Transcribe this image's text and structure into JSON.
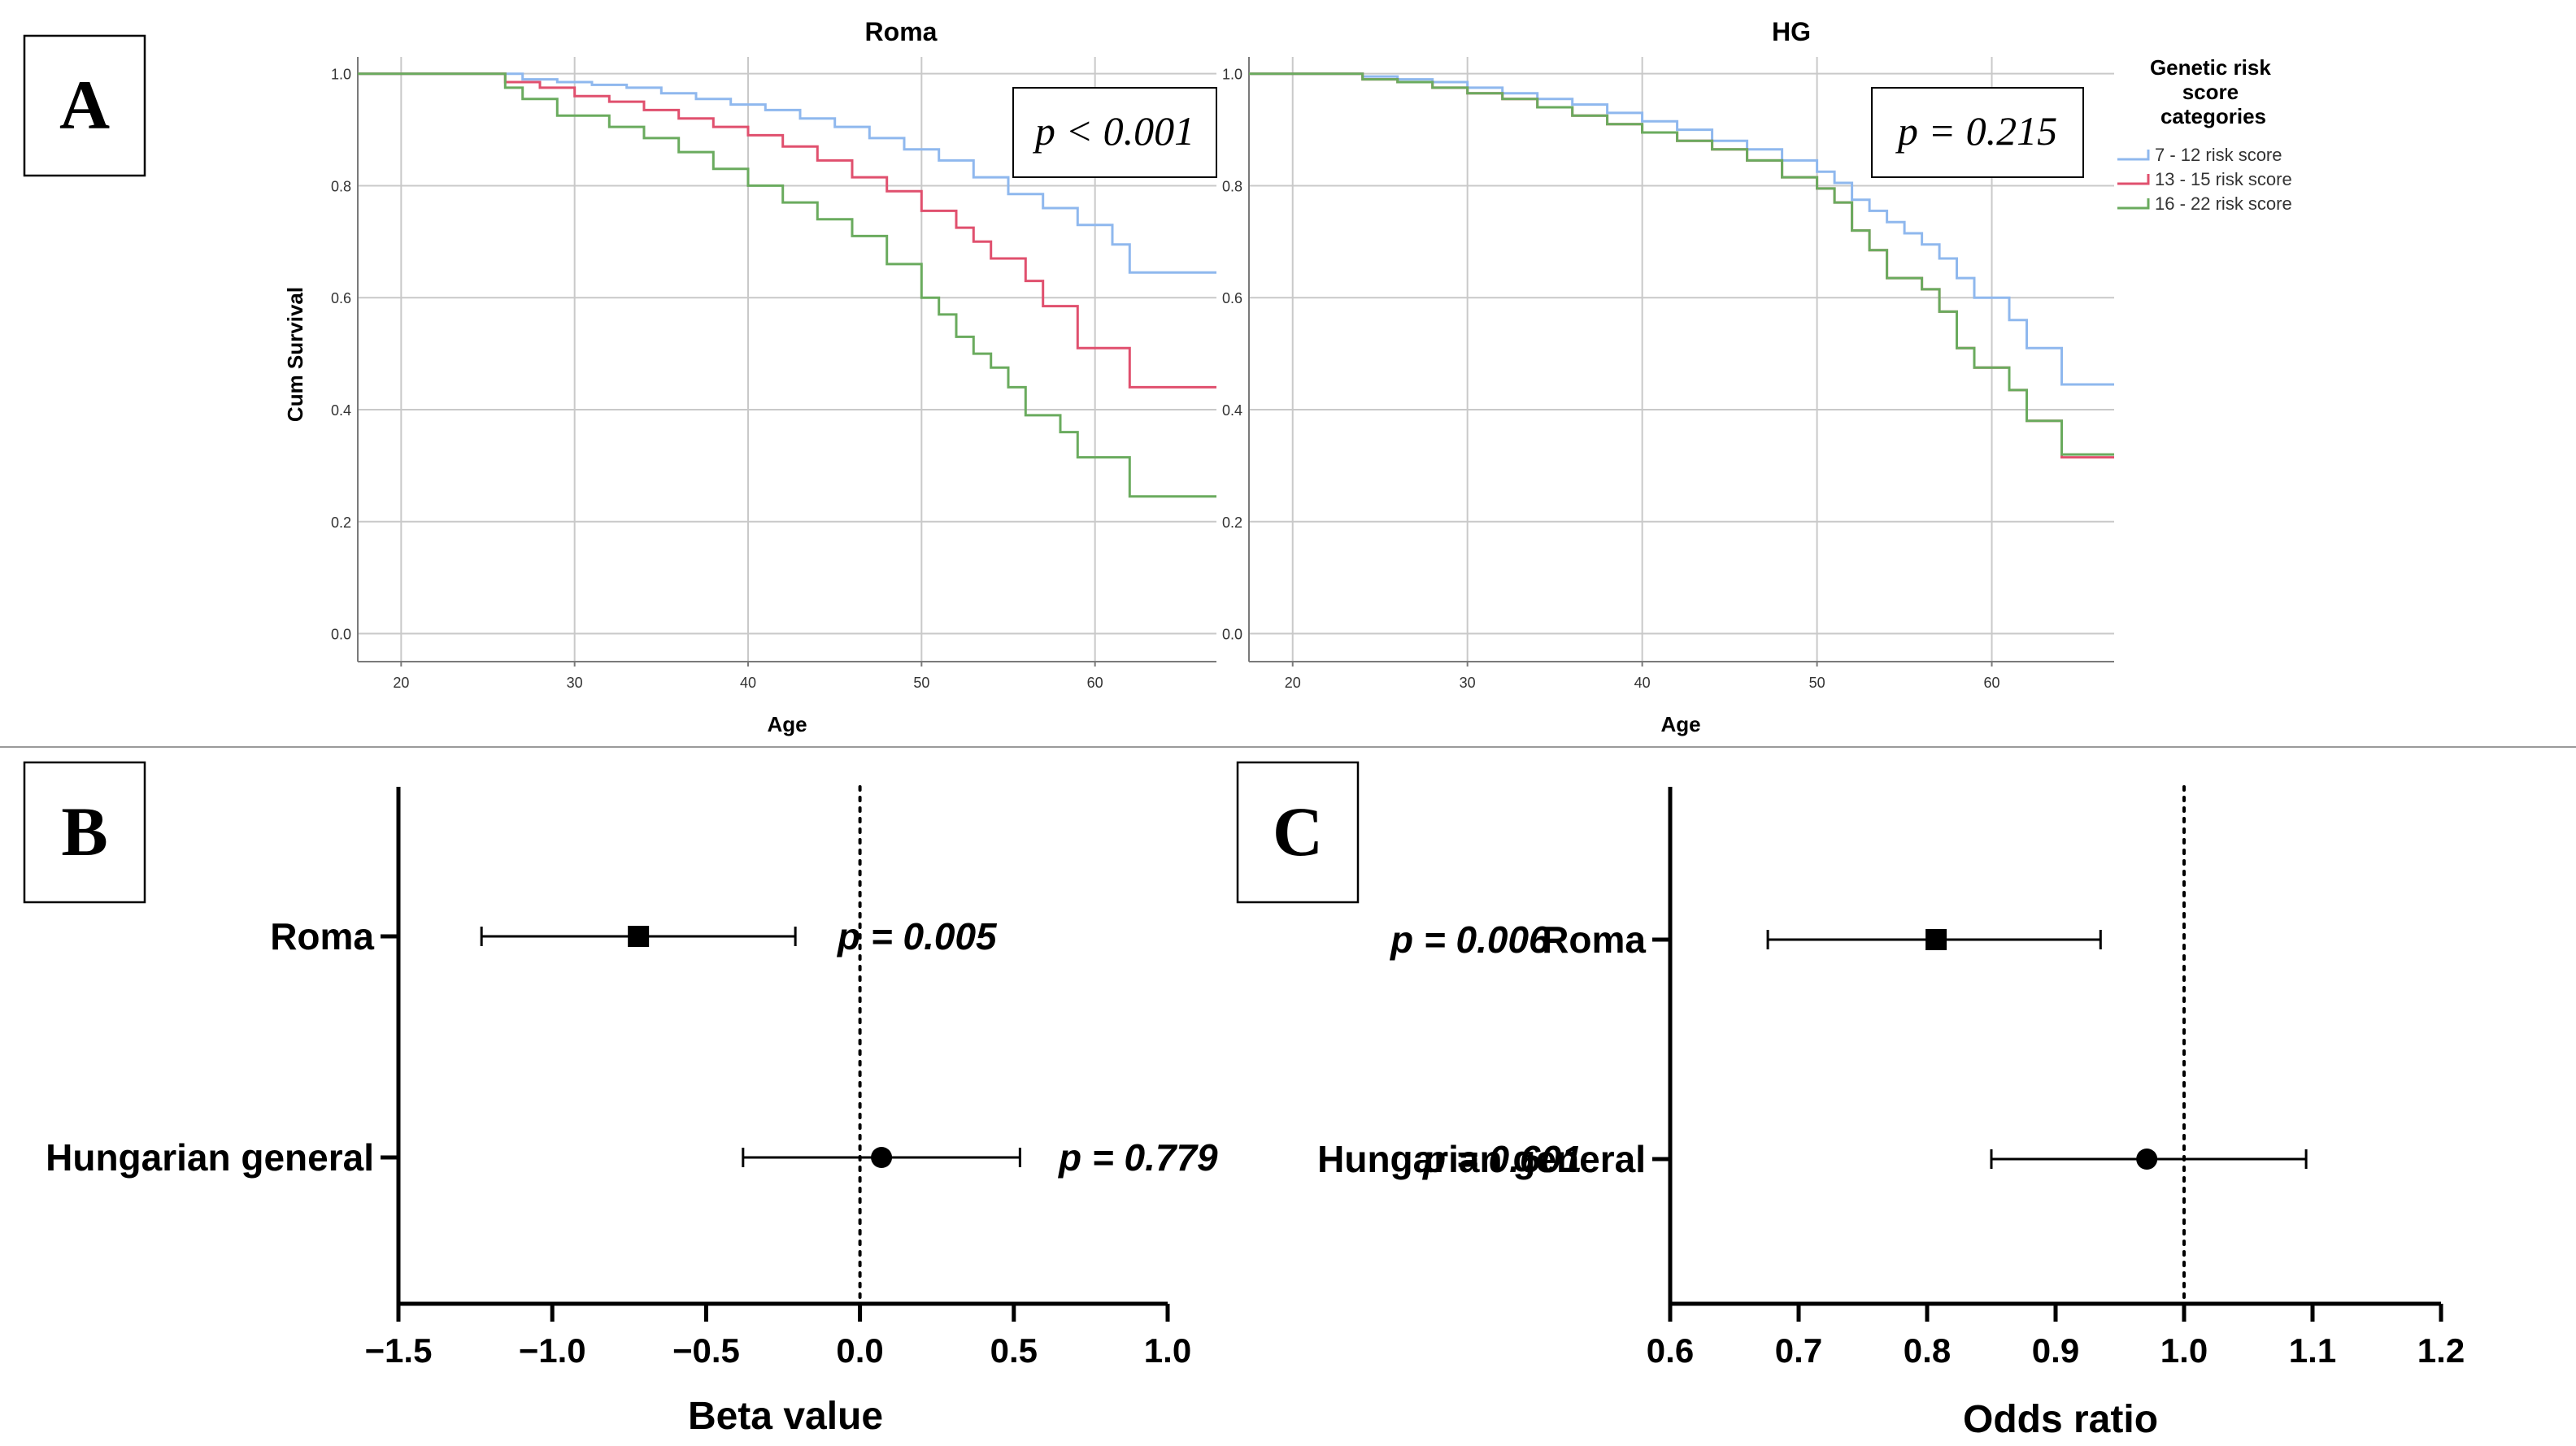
{
  "panel_labels": {
    "a": "A",
    "b": "B",
    "c": "C"
  },
  "colors": {
    "low": "#8fb8ee",
    "mid": "#e0506e",
    "high": "#6aab5e",
    "grid": "#c9c9c9",
    "axis": "#7a7a7a",
    "forest": "#000000"
  },
  "chart_data": [
    {
      "id": "km_roma",
      "type": "line",
      "title": "Roma",
      "xlabel": "Age",
      "ylabel": "Cum Survival",
      "xlim": [
        17.5,
        67
      ],
      "ylim": [
        -0.05,
        1.03
      ],
      "xticks": [
        20,
        30,
        40,
        50,
        60
      ],
      "yticks": [
        "0.0",
        "0.2",
        "0.4",
        "0.6",
        "0.8",
        "1.0"
      ],
      "grid": true,
      "annotation": "p < 0.001",
      "series": [
        {
          "name": "7 - 12 risk score",
          "color": "#8fb8ee",
          "points": [
            [
              17.5,
              1.0
            ],
            [
              25,
              1.0
            ],
            [
              27,
              0.99
            ],
            [
              29,
              0.985
            ],
            [
              31,
              0.98
            ],
            [
              33,
              0.975
            ],
            [
              35,
              0.965
            ],
            [
              37,
              0.955
            ],
            [
              39,
              0.945
            ],
            [
              41,
              0.935
            ],
            [
              43,
              0.92
            ],
            [
              45,
              0.905
            ],
            [
              47,
              0.885
            ],
            [
              49,
              0.865
            ],
            [
              51,
              0.845
            ],
            [
              53,
              0.815
            ],
            [
              55,
              0.785
            ],
            [
              57,
              0.76
            ],
            [
              59,
              0.73
            ],
            [
              61,
              0.695
            ],
            [
              62,
              0.645
            ],
            [
              67,
              0.645
            ]
          ]
        },
        {
          "name": "13 - 15 risk score",
          "color": "#e0506e",
          "points": [
            [
              17.5,
              1.0
            ],
            [
              25,
              1.0
            ],
            [
              26,
              0.985
            ],
            [
              28,
              0.975
            ],
            [
              30,
              0.96
            ],
            [
              32,
              0.95
            ],
            [
              34,
              0.935
            ],
            [
              36,
              0.92
            ],
            [
              38,
              0.905
            ],
            [
              40,
              0.89
            ],
            [
              42,
              0.87
            ],
            [
              44,
              0.845
            ],
            [
              46,
              0.815
            ],
            [
              48,
              0.79
            ],
            [
              50,
              0.755
            ],
            [
              52,
              0.725
            ],
            [
              53,
              0.7
            ],
            [
              54,
              0.67
            ],
            [
              56,
              0.63
            ],
            [
              57,
              0.585
            ],
            [
              59,
              0.51
            ],
            [
              62,
              0.44
            ],
            [
              67,
              0.44
            ]
          ]
        },
        {
          "name": "16 - 22 risk score",
          "color": "#6aab5e",
          "points": [
            [
              17.5,
              1.0
            ],
            [
              25,
              1.0
            ],
            [
              26,
              0.975
            ],
            [
              27,
              0.955
            ],
            [
              29,
              0.925
            ],
            [
              32,
              0.905
            ],
            [
              34,
              0.885
            ],
            [
              36,
              0.86
            ],
            [
              38,
              0.83
            ],
            [
              40,
              0.8
            ],
            [
              42,
              0.77
            ],
            [
              44,
              0.74
            ],
            [
              46,
              0.71
            ],
            [
              48,
              0.66
            ],
            [
              50,
              0.6
            ],
            [
              51,
              0.57
            ],
            [
              52,
              0.53
            ],
            [
              53,
              0.5
            ],
            [
              54,
              0.475
            ],
            [
              55,
              0.44
            ],
            [
              56,
              0.39
            ],
            [
              58,
              0.36
            ],
            [
              59,
              0.315
            ],
            [
              62,
              0.245
            ],
            [
              67,
              0.245
            ]
          ]
        }
      ],
      "legend": {
        "title": "Genetic risk score categories",
        "entries": [
          "7 - 12 risk score",
          "13 - 15 risk score",
          "16 - 22 risk score"
        ]
      }
    },
    {
      "id": "km_hg",
      "type": "line",
      "title": "HG",
      "xlabel": "Age",
      "ylabel": "",
      "xlim": [
        17.5,
        67
      ],
      "ylim": [
        -0.05,
        1.03
      ],
      "xticks": [
        20,
        30,
        40,
        50,
        60
      ],
      "yticks": [
        "0.0",
        "0.2",
        "0.4",
        "0.6",
        "0.8",
        "1.0"
      ],
      "grid": true,
      "annotation": "p = 0.215",
      "series": [
        {
          "name": "7 - 12 risk score",
          "color": "#8fb8ee",
          "points": [
            [
              17.5,
              1.0
            ],
            [
              22,
              1.0
            ],
            [
              24,
              0.995
            ],
            [
              26,
              0.99
            ],
            [
              28,
              0.985
            ],
            [
              30,
              0.975
            ],
            [
              32,
              0.965
            ],
            [
              34,
              0.955
            ],
            [
              36,
              0.945
            ],
            [
              38,
              0.93
            ],
            [
              40,
              0.915
            ],
            [
              42,
              0.9
            ],
            [
              44,
              0.88
            ],
            [
              46,
              0.865
            ],
            [
              48,
              0.845
            ],
            [
              50,
              0.825
            ],
            [
              51,
              0.805
            ],
            [
              52,
              0.775
            ],
            [
              53,
              0.755
            ],
            [
              54,
              0.735
            ],
            [
              55,
              0.715
            ],
            [
              56,
              0.695
            ],
            [
              57,
              0.67
            ],
            [
              58,
              0.635
            ],
            [
              59,
              0.6
            ],
            [
              61,
              0.56
            ],
            [
              62,
              0.51
            ],
            [
              64,
              0.445
            ],
            [
              67,
              0.445
            ]
          ]
        },
        {
          "name": "13 - 15 risk score",
          "color": "#e0506e",
          "points": [
            [
              17.5,
              1.0
            ],
            [
              22,
              1.0
            ],
            [
              24,
              0.99
            ],
            [
              26,
              0.985
            ],
            [
              28,
              0.975
            ],
            [
              30,
              0.965
            ],
            [
              32,
              0.955
            ],
            [
              34,
              0.94
            ],
            [
              36,
              0.925
            ],
            [
              38,
              0.91
            ],
            [
              40,
              0.895
            ],
            [
              42,
              0.88
            ],
            [
              44,
              0.865
            ],
            [
              46,
              0.845
            ],
            [
              48,
              0.815
            ],
            [
              50,
              0.795
            ],
            [
              51,
              0.77
            ],
            [
              52,
              0.72
            ],
            [
              53,
              0.685
            ],
            [
              54,
              0.635
            ],
            [
              56,
              0.615
            ],
            [
              57,
              0.575
            ],
            [
              58,
              0.51
            ],
            [
              59,
              0.475
            ],
            [
              61,
              0.435
            ],
            [
              62,
              0.38
            ],
            [
              64,
              0.315
            ],
            [
              67,
              0.315
            ]
          ]
        },
        {
          "name": "16 - 22 risk score",
          "color": "#6aab5e",
          "points": [
            [
              17.5,
              1.0
            ],
            [
              22,
              1.0
            ],
            [
              24,
              0.99
            ],
            [
              26,
              0.985
            ],
            [
              28,
              0.975
            ],
            [
              30,
              0.965
            ],
            [
              32,
              0.955
            ],
            [
              34,
              0.94
            ],
            [
              36,
              0.925
            ],
            [
              38,
              0.91
            ],
            [
              40,
              0.895
            ],
            [
              42,
              0.88
            ],
            [
              44,
              0.865
            ],
            [
              46,
              0.845
            ],
            [
              48,
              0.815
            ],
            [
              50,
              0.795
            ],
            [
              51,
              0.77
            ],
            [
              52,
              0.72
            ],
            [
              53,
              0.685
            ],
            [
              54,
              0.635
            ],
            [
              56,
              0.615
            ],
            [
              57,
              0.575
            ],
            [
              58,
              0.51
            ],
            [
              59,
              0.475
            ],
            [
              61,
              0.435
            ],
            [
              62,
              0.38
            ],
            [
              64,
              0.32
            ],
            [
              67,
              0.32
            ]
          ]
        }
      ]
    },
    {
      "id": "forest_beta",
      "type": "scatter",
      "xlabel": "Beta value",
      "xlim": [
        -1.5,
        1.0
      ],
      "xticks": [
        "−1.5",
        "−1.0",
        "−0.5",
        "0.0",
        "0.5",
        "1.0"
      ],
      "xtick_values": [
        -1.5,
        -1.0,
        -0.5,
        0.0,
        0.5,
        1.0
      ],
      "reference": 0.0,
      "rows": [
        {
          "label": "Roma",
          "estimate": -0.72,
          "lower": -1.23,
          "upper": -0.21,
          "marker": "square",
          "p_text": "p = 0.005"
        },
        {
          "label": "Hungarian general",
          "estimate": 0.07,
          "lower": -0.38,
          "upper": 0.52,
          "marker": "circle",
          "p_text": "p = 0.779"
        }
      ]
    },
    {
      "id": "forest_or",
      "type": "scatter",
      "xlabel": "Odds ratio",
      "xlim": [
        0.6,
        1.2
      ],
      "xticks": [
        "0.6",
        "0.7",
        "0.8",
        "0.9",
        "1.0",
        "1.1",
        "1.2"
      ],
      "xtick_values": [
        0.6,
        0.7,
        0.8,
        0.9,
        1.0,
        1.1,
        1.2
      ],
      "reference": 1.0,
      "rows": [
        {
          "label": "Roma",
          "estimate": 0.807,
          "lower": 0.676,
          "upper": 0.935,
          "marker": "square",
          "p_text": "p = 0.006"
        },
        {
          "label": "Hungarian general",
          "estimate": 0.971,
          "lower": 0.85,
          "upper": 1.095,
          "marker": "circle",
          "p_text": "p = 0.601"
        }
      ]
    }
  ]
}
